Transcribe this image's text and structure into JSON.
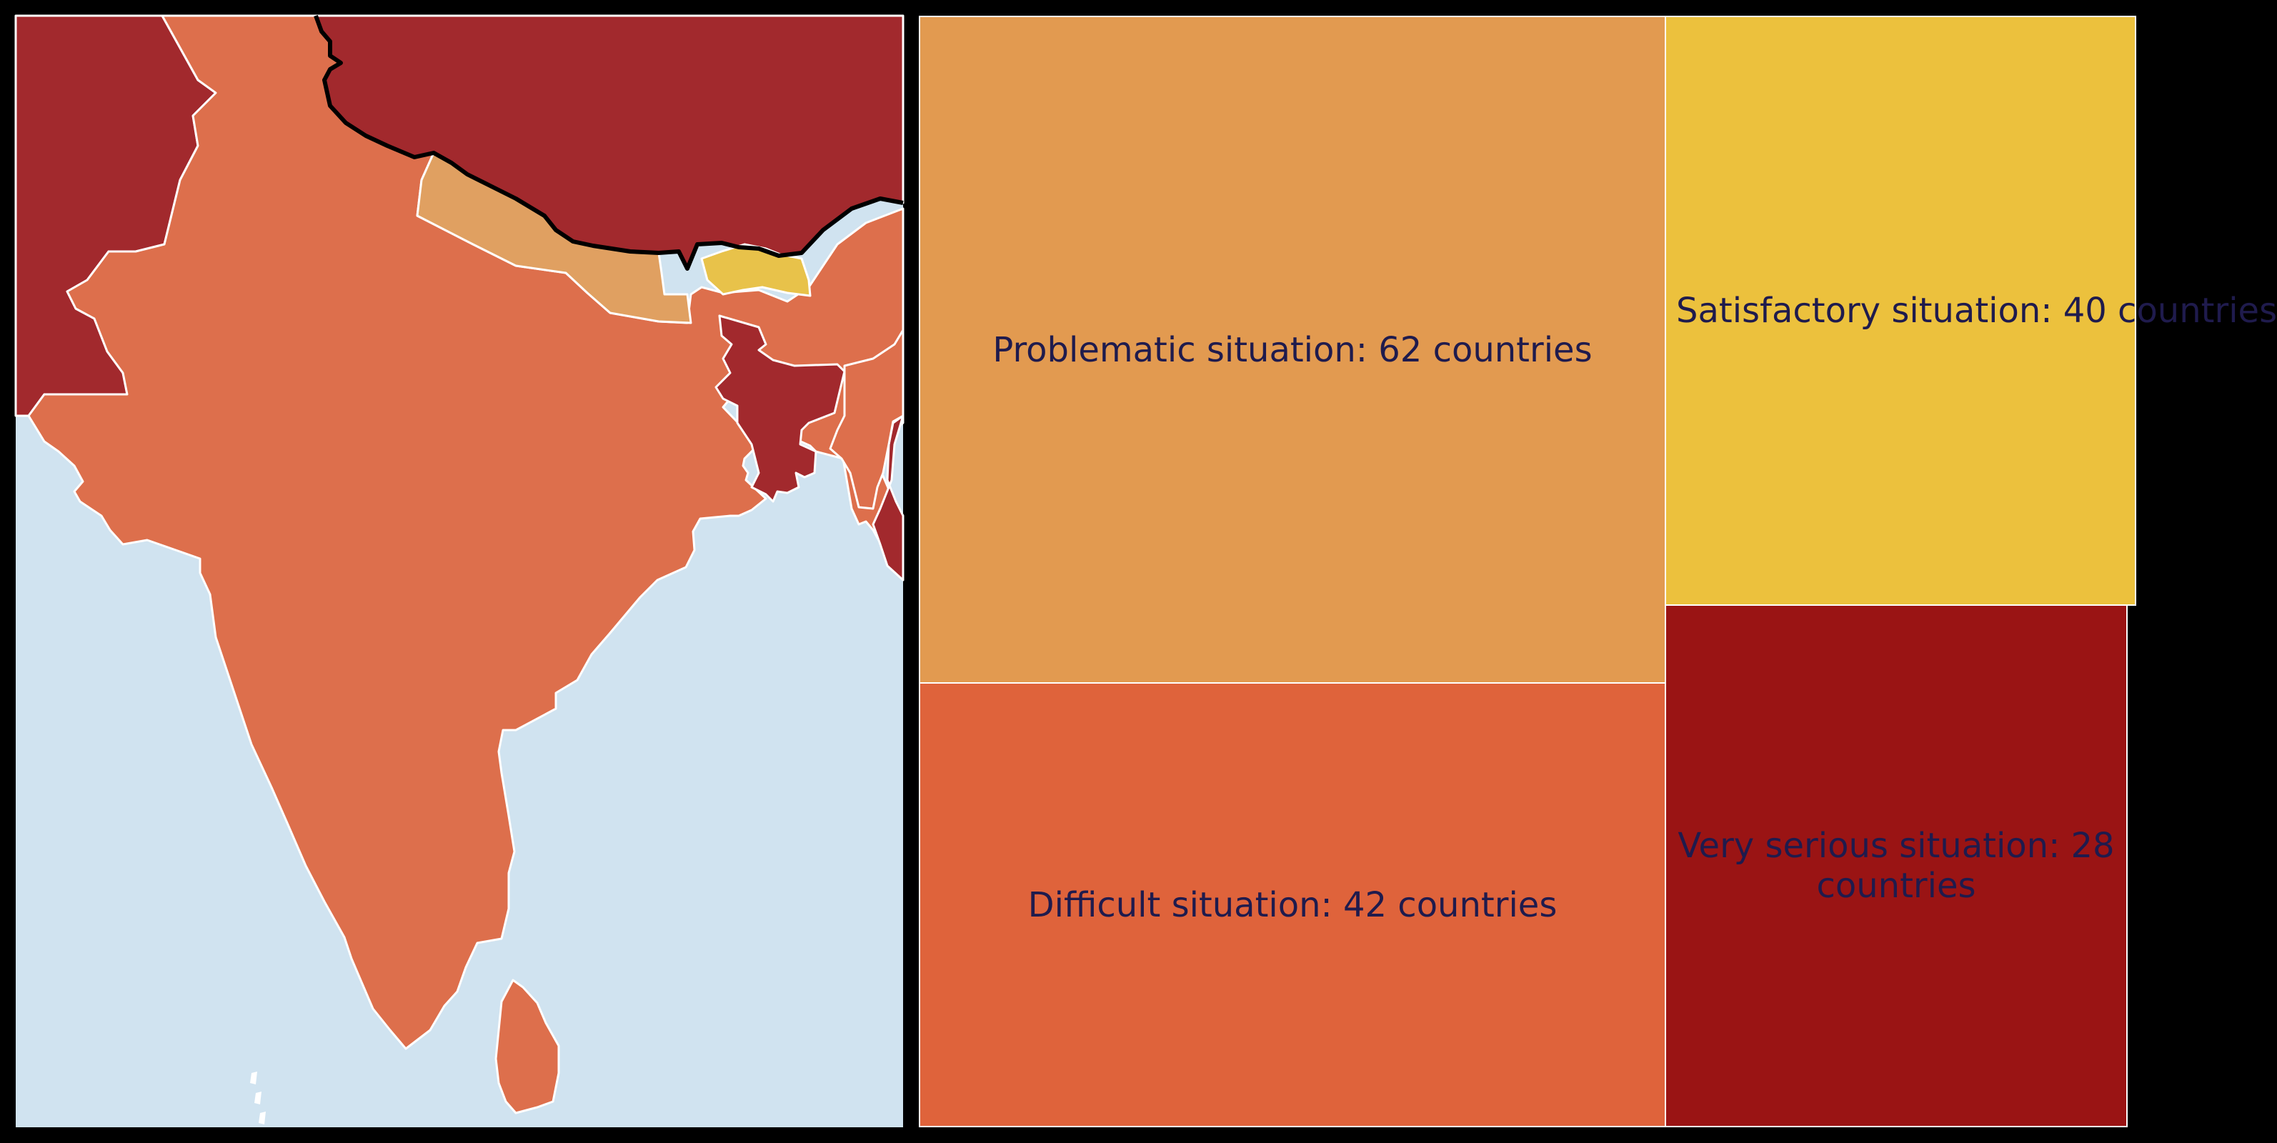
{
  "colors": {
    "background": "#000000",
    "sea": "#d0e3f0",
    "border_line": "#ffffff",
    "china_border_line": "#000000",
    "label_text": "#1f1b4d"
  },
  "map": {
    "regions": [
      {
        "name": "pakistan-afghanistan",
        "category": "Very serious situation",
        "color": "#a2292d"
      },
      {
        "name": "china",
        "category": "Very serious situation",
        "color": "#a2292d"
      },
      {
        "name": "india",
        "category": "Difficult situation",
        "color": "#dd6f4c"
      },
      {
        "name": "nepal",
        "category": "Problematic situation",
        "color": "#e0a061"
      },
      {
        "name": "bhutan",
        "category": "Satisfactory situation",
        "color": "#e8c24a"
      },
      {
        "name": "bangladesh",
        "category": "Very serious situation",
        "color": "#a2292d"
      },
      {
        "name": "myanmar",
        "category": "Very serious situation",
        "color": "#a2292d"
      },
      {
        "name": "northeast-india",
        "category": "Difficult situation",
        "color": "#dd6f4c"
      },
      {
        "name": "sri-lanka",
        "category": "Difficult situation",
        "color": "#dd6f4c"
      }
    ]
  },
  "chart_data": {
    "type": "treemap",
    "items": [
      {
        "category": "Problematic situation",
        "count": 62,
        "label": "Problematic situation: 62 countries",
        "color": "#e29a50"
      },
      {
        "category": "Difficult situation",
        "count": 42,
        "label": "Difficult situation: 42 countries",
        "color": "#df633b"
      },
      {
        "category": "Satisfactory situation",
        "count": 40,
        "label": "Satisfactory situation: 40 countries",
        "color": "#ecc13d"
      },
      {
        "category": "Very serious situation",
        "count": 28,
        "label": "Very serious situation: 28 countries",
        "color": "#9a1414"
      }
    ]
  }
}
